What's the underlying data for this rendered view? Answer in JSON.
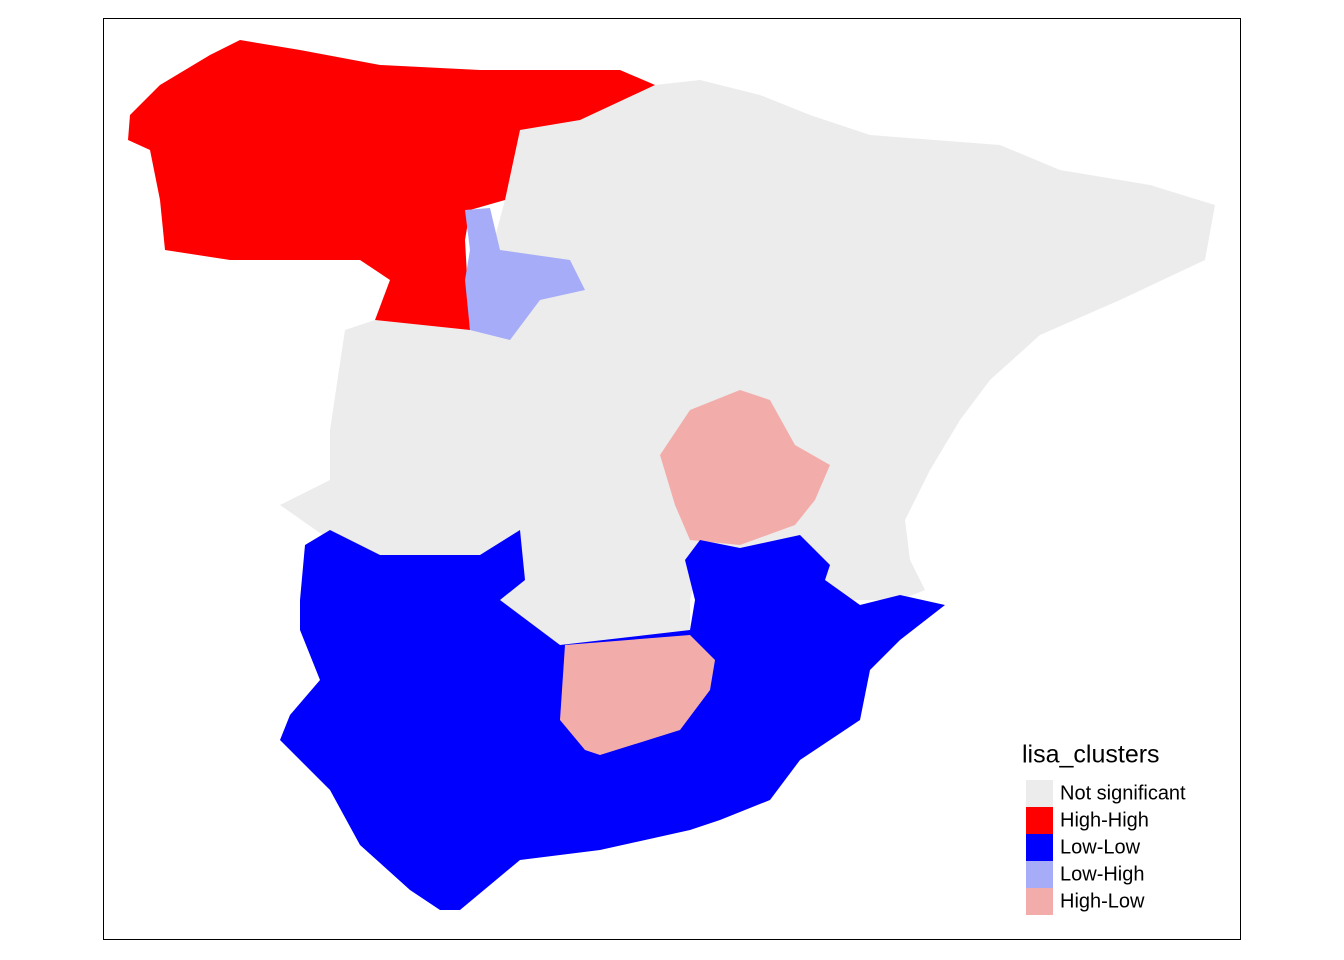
{
  "legend": {
    "title": "lisa_clusters",
    "items": [
      {
        "label": "Not significant",
        "color": "#ececec"
      },
      {
        "label": "High-High",
        "color": "#ff0000"
      },
      {
        "label": "Low-Low",
        "color": "#0000ff"
      },
      {
        "label": "Low-High",
        "color": "#a6acf7"
      },
      {
        "label": "High-Low",
        "color": "#f2adab"
      }
    ]
  }
}
